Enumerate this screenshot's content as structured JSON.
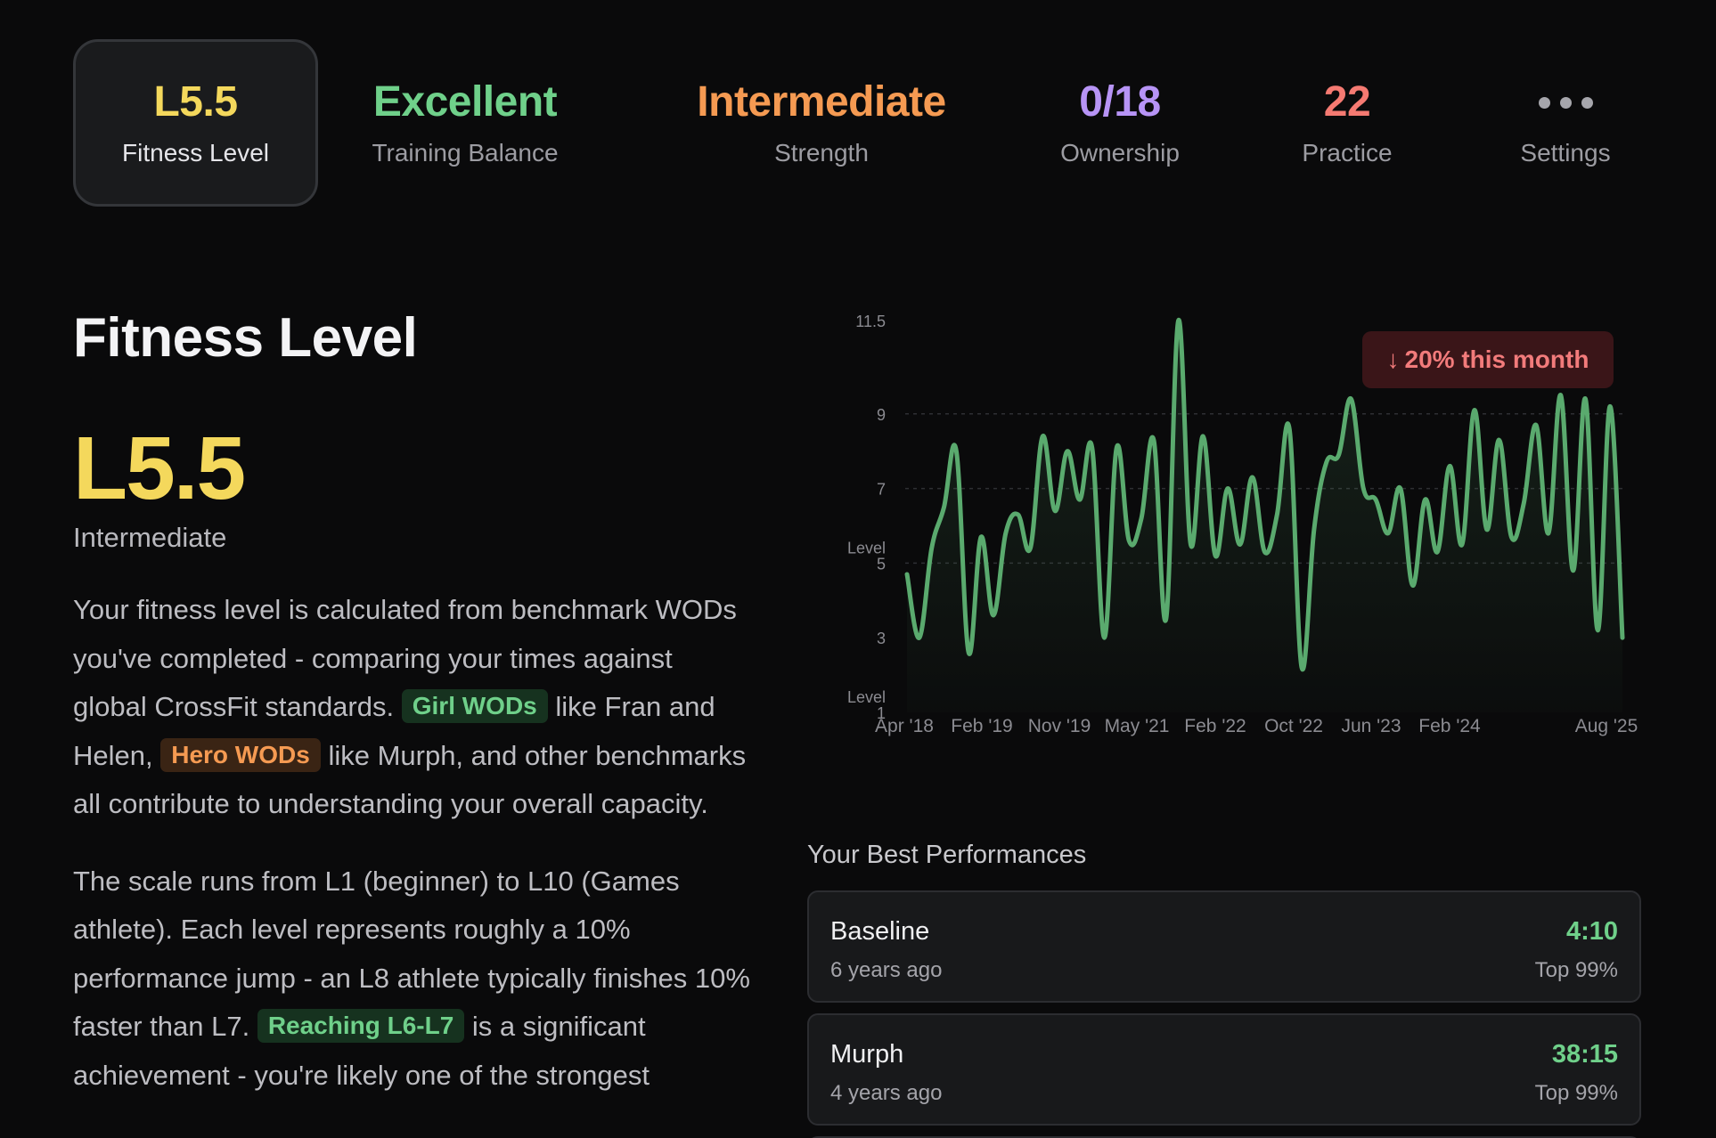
{
  "tabs": [
    {
      "value": "L5.5",
      "label": "Fitness Level",
      "color": "#f4d85c",
      "active": true
    },
    {
      "value": "Excellent",
      "label": "Training Balance",
      "color": "#6fd08a"
    },
    {
      "value": "Intermediate",
      "label": "Strength",
      "color": "#f59a52"
    },
    {
      "value": "0/18",
      "label": "Ownership",
      "color": "#b794f6"
    },
    {
      "value": "22",
      "label": "Practice",
      "color": "#f57a72"
    },
    {
      "icon": "more-dots-icon",
      "label": "Settings",
      "color": "#a6a6ac"
    }
  ],
  "section": {
    "title": "Fitness Level",
    "level": "L5.5",
    "level_name": "Intermediate",
    "p1": {
      "a": "Your fitness level is calculated from benchmark WODs you've completed - comparing your times against global CrossFit standards.",
      "tag1": "Girl WODs",
      "b": "like Fran and Helen,",
      "tag2": "Hero WODs",
      "c": "like Murph, and other benchmarks all contribute to understanding your overall capacity."
    },
    "p2": {
      "a": "The scale runs from L1 (beginner) to L10 (Games athlete). Each level represents roughly a 10% performance jump - an L8 athlete typically finishes 10% faster than L7.",
      "tag": "Reaching L6-L7",
      "b": "is a significant achievement - you're likely one of the strongest"
    }
  },
  "badge": {
    "arrow": "↓",
    "text": "20% this month",
    "color": "#f27b7b"
  },
  "chart_data": {
    "type": "line",
    "ylabel": "Level",
    "yticks": [
      11.5,
      9,
      7,
      5,
      3,
      1
    ],
    "ylim": [
      1,
      11.5
    ],
    "grid": "dashed at 9, 7, 5",
    "color": "#5aaa6e",
    "xticks": [
      "Apr '18",
      "Feb '19",
      "Nov '19",
      "May '21",
      "Feb '22",
      "Oct '22",
      "Jun '23",
      "Feb '24",
      "Aug '25"
    ],
    "y": [
      4.7,
      3,
      5.4,
      6.5,
      8,
      2.6,
      5.7,
      3.6,
      5.8,
      6.3,
      5.4,
      8.4,
      6.4,
      8,
      6.7,
      8.1,
      3,
      8.1,
      5.6,
      6.2,
      8.3,
      3.5,
      11.5,
      5.5,
      8.4,
      5.2,
      7,
      5.5,
      7.3,
      5.3,
      6.3,
      8.6,
      2.2,
      5.9,
      7.7,
      7.9,
      9.4,
      7,
      6.7,
      5.8,
      7,
      4.4,
      6.7,
      5.3,
      7.6,
      5.5,
      9.1,
      5.9,
      8.3,
      5.7,
      6.6,
      8.7,
      5.8,
      9.5,
      4.8,
      9.4,
      3.2,
      9.2,
      3
    ]
  },
  "performances": {
    "title": "Your Best Performances",
    "items": [
      {
        "name": "Baseline",
        "ago": "6 years ago",
        "time": "4:10",
        "rank": "Top 99%"
      },
      {
        "name": "Murph",
        "ago": "4 years ago",
        "time": "38:15",
        "rank": "Top 99%"
      }
    ]
  }
}
